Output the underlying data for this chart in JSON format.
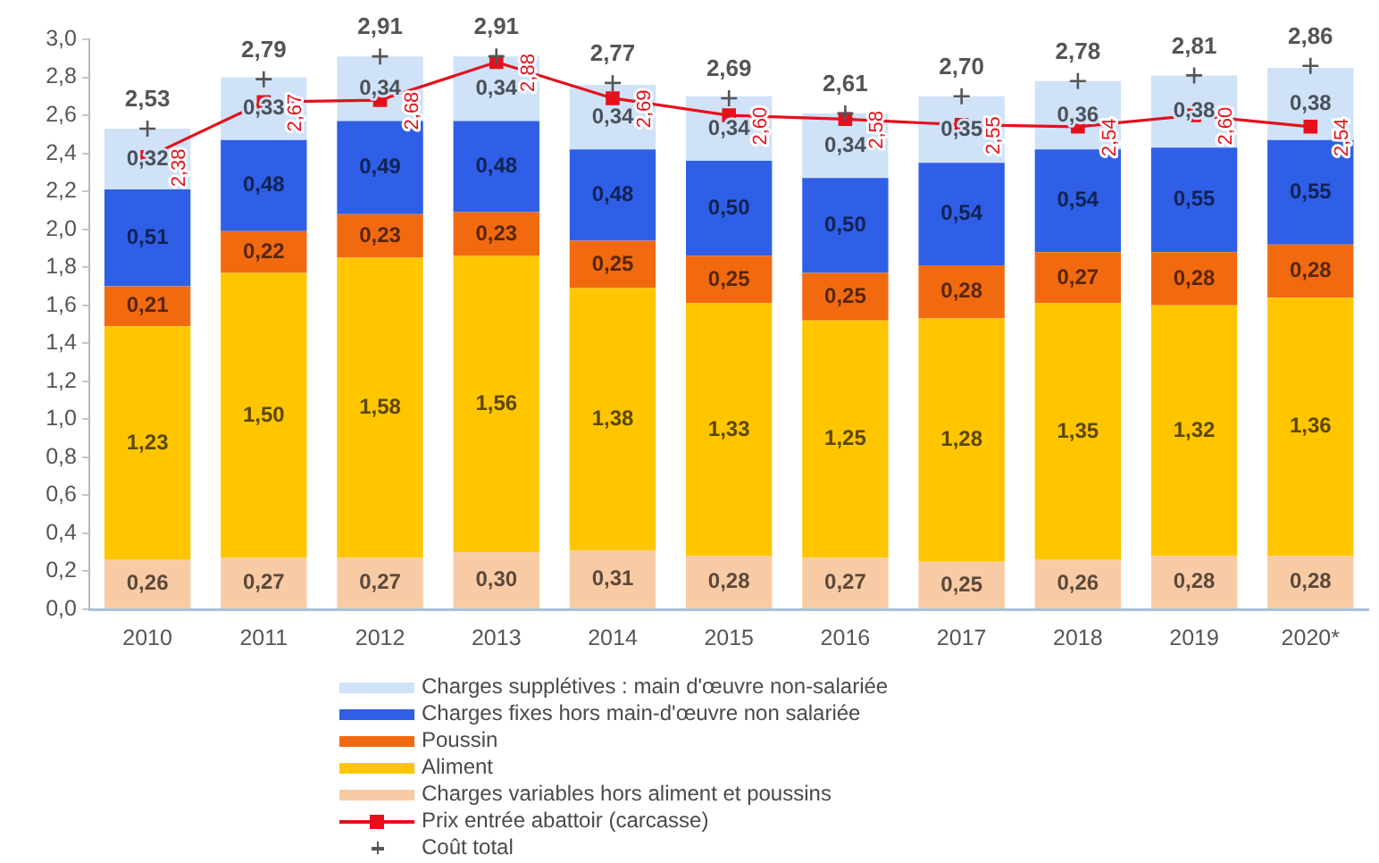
{
  "chart_data": {
    "type": "bar",
    "stacked": true,
    "categories": [
      "2010",
      "2011",
      "2012",
      "2013",
      "2014",
      "2015",
      "2016",
      "2017",
      "2018",
      "2019",
      "2020*"
    ],
    "series": [
      {
        "name": "Charges variables hors aliment et poussins",
        "color": "#f9cba5",
        "values": [
          0.26,
          0.27,
          0.27,
          0.3,
          0.31,
          0.28,
          0.27,
          0.25,
          0.26,
          0.28,
          0.28
        ],
        "value_labels": [
          "0,26",
          "0,27",
          "0,27",
          "0,30",
          "0,31",
          "0,28",
          "0,27",
          "0,25",
          "0,26",
          "0,28",
          "0,28"
        ]
      },
      {
        "name": "Aliment",
        "color": "#ffc600",
        "values": [
          1.23,
          1.5,
          1.58,
          1.56,
          1.38,
          1.33,
          1.25,
          1.28,
          1.35,
          1.32,
          1.36
        ],
        "value_labels": [
          "1,23",
          "1,50",
          "1,58",
          "1,56",
          "1,38",
          "1,33",
          "1,25",
          "1,28",
          "1,35",
          "1,32",
          "1,36"
        ]
      },
      {
        "name": "Poussin",
        "color": "#f26a10",
        "values": [
          0.21,
          0.22,
          0.23,
          0.23,
          0.25,
          0.25,
          0.25,
          0.28,
          0.27,
          0.28,
          0.28
        ],
        "value_labels": [
          "0,21",
          "0,22",
          "0,23",
          "0,23",
          "0,25",
          "0,25",
          "0,25",
          "0,28",
          "0,27",
          "0,28",
          "0,28"
        ]
      },
      {
        "name": "Charges fixes hors main-d'œuvre non salariée",
        "color": "#2f5fe6",
        "values": [
          0.51,
          0.48,
          0.49,
          0.48,
          0.48,
          0.5,
          0.5,
          0.54,
          0.54,
          0.55,
          0.55
        ],
        "value_labels": [
          "0,51",
          "0,48",
          "0,49",
          "0,48",
          "0,48",
          "0,50",
          "0,50",
          "0,54",
          "0,54",
          "0,55",
          "0,55"
        ]
      },
      {
        "name": "Charges supplétives : main d'œuvre non-salariée",
        "color": "#cfe2f8",
        "values": [
          0.32,
          0.33,
          0.34,
          0.34,
          0.34,
          0.34,
          0.34,
          0.35,
          0.36,
          0.38,
          0.38
        ],
        "value_labels": [
          "0,32",
          "0,33",
          "0,34",
          "0,34",
          "0,34",
          "0,34",
          "0,34",
          "0,35",
          "0,36",
          "0,38",
          "0,38"
        ]
      },
      {
        "name": "Prix entrée abattoir (carcasse)",
        "type": "line",
        "color": "#e5101c",
        "marker": "square",
        "values": [
          2.38,
          2.67,
          2.68,
          2.88,
          2.69,
          2.6,
          2.58,
          2.55,
          2.54,
          2.6,
          2.54
        ],
        "value_labels": [
          "2,38",
          "2,67",
          "2,68",
          "2,88",
          "2,69",
          "2,60",
          "2,58",
          "2,55",
          "2,54",
          "2,60",
          "2,54"
        ]
      },
      {
        "name": "Coût total",
        "type": "scatter",
        "color": "#555555",
        "marker": "cross",
        "values": [
          2.53,
          2.79,
          2.91,
          2.91,
          2.77,
          2.69,
          2.61,
          2.7,
          2.78,
          2.81,
          2.86
        ],
        "value_labels": [
          "2,53",
          "2,79",
          "2,91",
          "2,91",
          "2,77",
          "2,69",
          "2,61",
          "2,70",
          "2,78",
          "2,81",
          "2,86"
        ]
      }
    ],
    "ylim": [
      0,
      3
    ],
    "yticks": [
      {
        "value": 0,
        "label": "0,0"
      },
      {
        "value": 0.2,
        "label": "0,2"
      },
      {
        "value": 0.4,
        "label": "0,4"
      },
      {
        "value": 0.6,
        "label": "0,6"
      },
      {
        "value": 0.8,
        "label": "0,8"
      },
      {
        "value": 1,
        "label": "1,0"
      },
      {
        "value": 1.2,
        "label": "1,2"
      },
      {
        "value": 1.4,
        "label": "1,4"
      },
      {
        "value": 1.6,
        "label": "1,6"
      },
      {
        "value": 1.8,
        "label": "1,8"
      },
      {
        "value": 2,
        "label": "2,0"
      },
      {
        "value": 2.2,
        "label": "2,2"
      },
      {
        "value": 2.4,
        "label": "2,4"
      },
      {
        "value": 2.6,
        "label": "2,6"
      },
      {
        "value": 2.8,
        "label": "2,8"
      },
      {
        "value": 3,
        "label": "3,0"
      }
    ],
    "grid": false,
    "legend": "bottom"
  }
}
